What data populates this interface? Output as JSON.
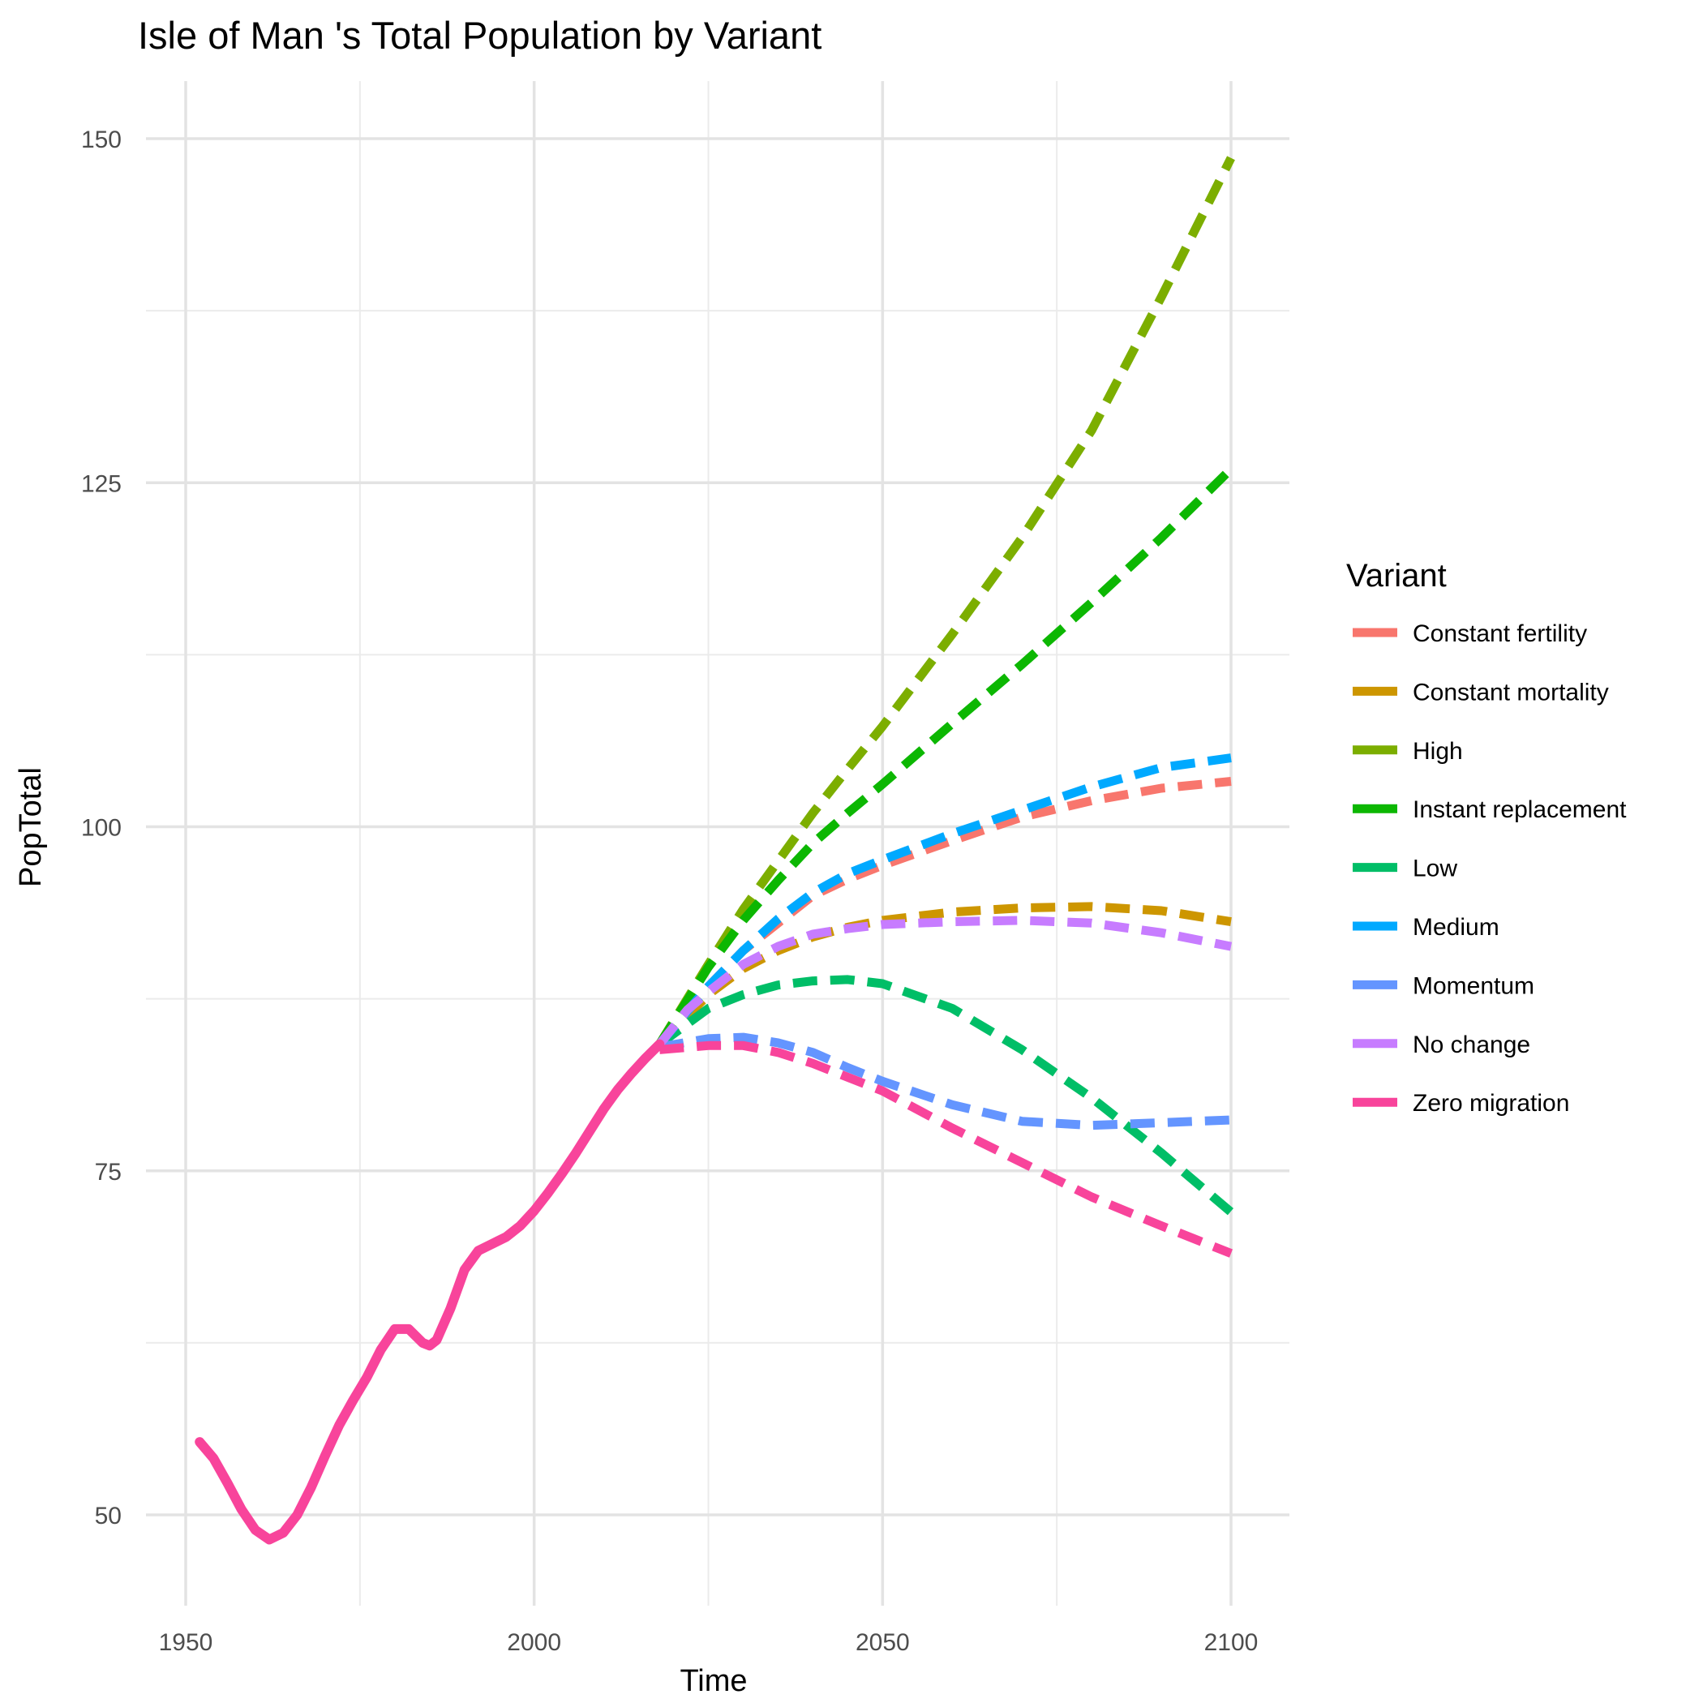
{
  "chart_data": {
    "type": "line",
    "title": "Isle of Man 's Total Population by Variant",
    "xlabel": "Time",
    "ylabel": "PopTotal",
    "xlim": [
      1950,
      2100
    ],
    "ylim": [
      45,
      154
    ],
    "x_ticks": [
      1950,
      2000,
      2050,
      2100
    ],
    "y_ticks": [
      50,
      75,
      100,
      125,
      150
    ],
    "grid": true,
    "legend": {
      "title": "Variant",
      "position": "right"
    },
    "historical": {
      "name": "Zero migration",
      "color": "#F8449B",
      "points": [
        [
          1952,
          55.3
        ],
        [
          1954,
          54.1
        ],
        [
          1956,
          52.3
        ],
        [
          1958,
          50.4
        ],
        [
          1960,
          48.9
        ],
        [
          1962,
          48.2
        ],
        [
          1964,
          48.7
        ],
        [
          1966,
          50.0
        ],
        [
          1968,
          52.0
        ],
        [
          1970,
          54.3
        ],
        [
          1972,
          56.5
        ],
        [
          1974,
          58.3
        ],
        [
          1976,
          60.0
        ],
        [
          1978,
          62.0
        ],
        [
          1980,
          63.5
        ],
        [
          1982,
          63.5
        ],
        [
          1984,
          62.5
        ],
        [
          1985,
          62.3
        ],
        [
          1986,
          62.7
        ],
        [
          1988,
          65.0
        ],
        [
          1990,
          67.8
        ],
        [
          1992,
          69.2
        ],
        [
          1994,
          69.7
        ],
        [
          1996,
          70.2
        ],
        [
          1998,
          71.0
        ],
        [
          2000,
          72.1
        ],
        [
          2002,
          73.4
        ],
        [
          2004,
          74.8
        ],
        [
          2006,
          76.3
        ],
        [
          2008,
          77.9
        ],
        [
          2010,
          79.5
        ],
        [
          2012,
          80.9
        ],
        [
          2014,
          82.1
        ],
        [
          2016,
          83.2
        ],
        [
          2018,
          84.2
        ]
      ]
    },
    "series": [
      {
        "name": "Constant fertility",
        "color": "#F8766D",
        "points": [
          [
            2018,
            84.2
          ],
          [
            2025,
            88.4
          ],
          [
            2030,
            91.0
          ],
          [
            2035,
            93.0
          ],
          [
            2040,
            95.0
          ],
          [
            2045,
            96.2
          ],
          [
            2050,
            97.2
          ],
          [
            2060,
            99.0
          ],
          [
            2070,
            100.7
          ],
          [
            2080,
            101.9
          ],
          [
            2090,
            102.8
          ],
          [
            2100,
            103.3
          ]
        ]
      },
      {
        "name": "Constant mortality",
        "color": "#CD9600",
        "points": [
          [
            2018,
            84.2
          ],
          [
            2025,
            87.8
          ],
          [
            2030,
            89.7
          ],
          [
            2035,
            91.0
          ],
          [
            2040,
            92.0
          ],
          [
            2045,
            92.7
          ],
          [
            2050,
            93.2
          ],
          [
            2060,
            93.8
          ],
          [
            2070,
            94.1
          ],
          [
            2080,
            94.2
          ],
          [
            2090,
            93.9
          ],
          [
            2100,
            93.1
          ]
        ]
      },
      {
        "name": "High",
        "color": "#7CAE00",
        "points": [
          [
            2018,
            84.2
          ],
          [
            2025,
            90.0
          ],
          [
            2030,
            94.0
          ],
          [
            2035,
            97.5
          ],
          [
            2040,
            101.0
          ],
          [
            2045,
            104.2
          ],
          [
            2050,
            107.3
          ],
          [
            2060,
            114.0
          ],
          [
            2070,
            121.0
          ],
          [
            2080,
            128.8
          ],
          [
            2090,
            138.5
          ],
          [
            2100,
            148.6
          ]
        ]
      },
      {
        "name": "Instant replacement",
        "color": "#0CB702",
        "points": [
          [
            2018,
            84.2
          ],
          [
            2025,
            89.8
          ],
          [
            2030,
            93.2
          ],
          [
            2035,
            96.1
          ],
          [
            2040,
            98.8
          ],
          [
            2045,
            101.0
          ],
          [
            2050,
            103.1
          ],
          [
            2060,
            107.5
          ],
          [
            2070,
            111.8
          ],
          [
            2080,
            116.3
          ],
          [
            2090,
            121.0
          ],
          [
            2100,
            126.0
          ]
        ]
      },
      {
        "name": "Low",
        "color": "#00BE67",
        "points": [
          [
            2018,
            84.2
          ],
          [
            2025,
            86.8
          ],
          [
            2030,
            87.8
          ],
          [
            2035,
            88.5
          ],
          [
            2040,
            88.8
          ],
          [
            2045,
            88.9
          ],
          [
            2050,
            88.6
          ],
          [
            2060,
            86.8
          ],
          [
            2070,
            83.8
          ],
          [
            2080,
            80.3
          ],
          [
            2090,
            76.3
          ],
          [
            2100,
            72.0
          ]
        ]
      },
      {
        "name": "Medium",
        "color": "#00A9FF",
        "points": [
          [
            2018,
            84.2
          ],
          [
            2025,
            88.4
          ],
          [
            2030,
            91.0
          ],
          [
            2035,
            93.3
          ],
          [
            2040,
            95.2
          ],
          [
            2045,
            96.6
          ],
          [
            2050,
            97.6
          ],
          [
            2060,
            99.5
          ],
          [
            2070,
            101.2
          ],
          [
            2080,
            102.9
          ],
          [
            2090,
            104.3
          ],
          [
            2100,
            105.0
          ]
        ]
      },
      {
        "name": "Momentum",
        "color": "#6495FF",
        "points": [
          [
            2018,
            84.0
          ],
          [
            2025,
            84.6
          ],
          [
            2030,
            84.7
          ],
          [
            2035,
            84.3
          ],
          [
            2040,
            83.6
          ],
          [
            2045,
            82.5
          ],
          [
            2050,
            81.5
          ],
          [
            2060,
            79.8
          ],
          [
            2070,
            78.6
          ],
          [
            2080,
            78.3
          ],
          [
            2090,
            78.5
          ],
          [
            2100,
            78.7
          ]
        ]
      },
      {
        "name": "No change",
        "color": "#C77CFF",
        "points": [
          [
            2018,
            84.2
          ],
          [
            2022,
            86.7
          ],
          [
            2025,
            88.0
          ],
          [
            2030,
            90.0
          ],
          [
            2035,
            91.3
          ],
          [
            2040,
            92.2
          ],
          [
            2045,
            92.6
          ],
          [
            2050,
            92.9
          ],
          [
            2060,
            93.1
          ],
          [
            2070,
            93.2
          ],
          [
            2080,
            93.0
          ],
          [
            2090,
            92.3
          ],
          [
            2100,
            91.3
          ]
        ]
      },
      {
        "name": "Zero migration",
        "color": "#F8449B",
        "points": [
          [
            2018,
            83.8
          ],
          [
            2025,
            84.1
          ],
          [
            2030,
            84.1
          ],
          [
            2035,
            83.6
          ],
          [
            2040,
            82.8
          ],
          [
            2045,
            81.8
          ],
          [
            2050,
            80.8
          ],
          [
            2060,
            78.1
          ],
          [
            2070,
            75.6
          ],
          [
            2080,
            73.1
          ],
          [
            2090,
            71.0
          ],
          [
            2100,
            69.0
          ]
        ]
      }
    ]
  }
}
